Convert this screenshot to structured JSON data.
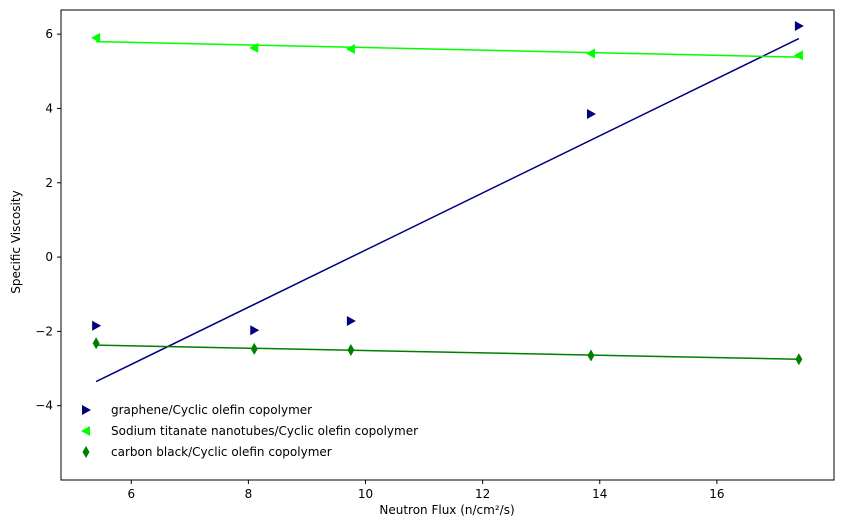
{
  "chart_data": {
    "type": "scatter",
    "title": "",
    "xlabel": "Neutron Flux (n/cm²/s)",
    "ylabel": "Specific Viscosity",
    "xlim": [
      4.8,
      18.0
    ],
    "ylim": [
      -6.0,
      6.65
    ],
    "xticks": [
      6,
      8,
      10,
      12,
      14,
      16
    ],
    "yticks": [
      -4,
      -2,
      0,
      2,
      4,
      6
    ],
    "grid": false,
    "legend_position": "lower-left",
    "series": [
      {
        "name": "graphene/Cyclic olefin copolymer",
        "marker": "triangle-right",
        "color": "#000080",
        "x": [
          5.4,
          8.1,
          9.75,
          13.85,
          17.4
        ],
        "y": [
          -1.85,
          -1.97,
          -1.72,
          3.85,
          6.22
        ],
        "fit": {
          "x": [
            5.4,
            17.4
          ],
          "y": [
            -3.35,
            5.88
          ]
        }
      },
      {
        "name": "Sodium titanate nanotubes/Cyclic olefin copolymer",
        "marker": "triangle-left",
        "color": "#00ff00",
        "x": [
          5.4,
          8.1,
          9.75,
          13.85,
          17.4
        ],
        "y": [
          5.9,
          5.63,
          5.6,
          5.48,
          5.43
        ],
        "fit": {
          "x": [
            5.4,
            17.4
          ],
          "y": [
            5.8,
            5.38
          ]
        }
      },
      {
        "name": "carbon black/Cyclic olefin copolymer",
        "marker": "thin-diamond",
        "color": "#008000",
        "x": [
          5.4,
          8.1,
          9.75,
          13.85,
          17.4
        ],
        "y": [
          -2.32,
          -2.47,
          -2.5,
          -2.65,
          -2.75
        ],
        "fit": {
          "x": [
            5.4,
            17.4
          ],
          "y": [
            -2.37,
            -2.75
          ]
        }
      }
    ]
  }
}
